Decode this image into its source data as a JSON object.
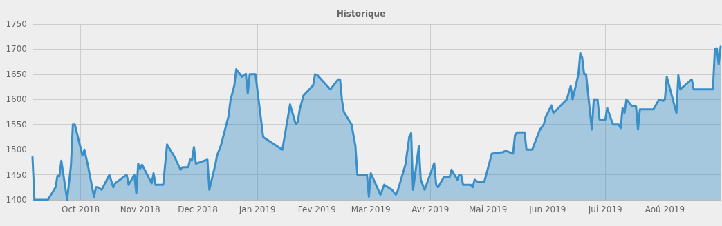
{
  "chart_data": {
    "type": "area",
    "title": "Historique",
    "x": [
      "2018-09-06",
      "2018-09-07",
      "2018-09-14",
      "2018-09-18",
      "2018-09-19",
      "2018-09-20",
      "2018-09-21",
      "2018-09-24",
      "2018-09-26",
      "2018-09-27",
      "2018-09-28",
      "2018-10-02",
      "2018-10-03",
      "2018-10-05",
      "2018-10-08",
      "2018-10-09",
      "2018-10-10",
      "2018-10-12",
      "2018-10-16",
      "2018-10-18",
      "2018-10-19",
      "2018-10-25",
      "2018-10-26",
      "2018-10-29",
      "2018-10-30",
      "2018-10-31",
      "2018-11-01",
      "2018-11-02",
      "2018-11-07",
      "2018-11-08",
      "2018-11-09",
      "2018-11-13",
      "2018-11-15",
      "2018-11-19",
      "2018-11-22",
      "2018-11-23",
      "2018-11-26",
      "2018-11-27",
      "2018-11-28",
      "2018-11-29",
      "2018-11-30",
      "2018-12-03",
      "2018-12-06",
      "2018-12-07",
      "2018-12-10",
      "2018-12-11",
      "2018-12-13",
      "2018-12-17",
      "2018-12-18",
      "2018-12-20",
      "2018-12-21",
      "2018-12-24",
      "2018-12-26",
      "2018-12-27",
      "2018-12-28",
      "2018-12-31",
      "2019-01-04",
      "2019-01-14",
      "2019-01-18",
      "2019-01-21",
      "2019-01-22",
      "2019-01-23",
      "2019-01-25",
      "2019-01-30",
      "2019-01-31",
      "2019-02-01",
      "2019-02-08",
      "2019-02-12",
      "2019-02-13",
      "2019-02-14",
      "2019-02-15",
      "2019-02-19",
      "2019-02-20",
      "2019-02-21",
      "2019-02-22",
      "2019-02-27",
      "2019-02-28",
      "2019-03-01",
      "2019-03-06",
      "2019-03-08",
      "2019-03-12",
      "2019-03-14",
      "2019-03-15",
      "2019-03-19",
      "2019-03-21",
      "2019-03-22",
      "2019-03-23",
      "2019-03-26",
      "2019-03-27",
      "2019-03-29",
      "2019-04-03",
      "2019-04-04",
      "2019-04-05",
      "2019-04-08",
      "2019-04-11",
      "2019-04-12",
      "2019-04-15",
      "2019-04-16",
      "2019-04-17",
      "2019-04-18",
      "2019-04-22",
      "2019-04-23",
      "2019-04-24",
      "2019-04-26",
      "2019-04-29",
      "2019-05-03",
      "2019-05-09",
      "2019-05-10",
      "2019-05-14",
      "2019-05-15",
      "2019-05-16",
      "2019-05-20",
      "2019-05-21",
      "2019-05-24",
      "2019-05-28",
      "2019-05-30",
      "2019-05-31",
      "2019-06-03",
      "2019-06-04",
      "2019-06-11",
      "2019-06-13",
      "2019-06-14",
      "2019-06-17",
      "2019-06-18",
      "2019-06-19",
      "2019-06-20",
      "2019-06-21",
      "2019-06-24",
      "2019-06-25",
      "2019-06-27",
      "2019-06-28",
      "2019-07-01",
      "2019-07-02",
      "2019-07-05",
      "2019-07-08",
      "2019-07-09",
      "2019-07-10",
      "2019-07-11",
      "2019-07-12",
      "2019-07-15",
      "2019-07-17",
      "2019-07-18",
      "2019-07-19",
      "2019-07-26",
      "2019-07-29",
      "2019-07-31",
      "2019-08-01",
      "2019-08-02",
      "2019-08-07",
      "2019-08-08",
      "2019-08-09",
      "2019-08-15",
      "2019-08-16",
      "2019-08-26",
      "2019-08-27",
      "2019-08-28",
      "2019-08-29",
      "2019-08-30"
    ],
    "series": [
      {
        "color": "#3a8fc9",
        "values": [
          1485,
          1400,
          1400,
          1425,
          1448,
          1447,
          1478,
          1400,
          1468,
          1550,
          1550,
          1488,
          1500,
          1465,
          1406,
          1425,
          1425,
          1420,
          1450,
          1425,
          1433,
          1450,
          1430,
          1450,
          1413,
          1472,
          1462,
          1470,
          1433,
          1453,
          1430,
          1430,
          1510,
          1485,
          1460,
          1465,
          1465,
          1480,
          1480,
          1505,
          1472,
          1476,
          1480,
          1420,
          1468,
          1488,
          1508,
          1567,
          1598,
          1628,
          1660,
          1645,
          1651,
          1612,
          1650,
          1650,
          1525,
          1500,
          1590,
          1550,
          1555,
          1580,
          1608,
          1628,
          1650,
          1649,
          1620,
          1640,
          1640,
          1598,
          1575,
          1550,
          1528,
          1507,
          1450,
          1450,
          1406,
          1453,
          1410,
          1430,
          1420,
          1410,
          1418,
          1470,
          1525,
          1533,
          1420,
          1507,
          1440,
          1420,
          1473,
          1430,
          1425,
          1445,
          1445,
          1460,
          1440,
          1450,
          1450,
          1430,
          1430,
          1425,
          1440,
          1435,
          1435,
          1492,
          1495,
          1498,
          1492,
          1528,
          1534,
          1534,
          1500,
          1500,
          1540,
          1550,
          1565,
          1588,
          1573,
          1600,
          1627,
          1600,
          1650,
          1692,
          1683,
          1650,
          1650,
          1540,
          1600,
          1600,
          1560,
          1560,
          1583,
          1550,
          1550,
          1543,
          1583,
          1573,
          1600,
          1586,
          1586,
          1540,
          1580,
          1580,
          1600,
          1597,
          1600,
          1645,
          1573,
          1648,
          1620,
          1640,
          1620,
          1620,
          1700,
          1702,
          1670,
          1705
        ]
      }
    ],
    "xlim": [
      "2018-09-06",
      "2019-08-30"
    ],
    "xticks": [
      {
        "value": "2018-10-01",
        "label": "Oct 2018"
      },
      {
        "value": "2018-11-01",
        "label": "Nov 2018"
      },
      {
        "value": "2018-12-01",
        "label": "Dec 2018"
      },
      {
        "value": "2019-01-01",
        "label": "Jan 2019"
      },
      {
        "value": "2019-02-01",
        "label": "Fev 2019"
      },
      {
        "value": "2019-03-01",
        "label": "Mar 2019"
      },
      {
        "value": "2019-04-01",
        "label": "Avr 2019"
      },
      {
        "value": "2019-05-01",
        "label": "Mai 2019"
      },
      {
        "value": "2019-06-01",
        "label": "Jun 2019"
      },
      {
        "value": "2019-07-01",
        "label": "Jui 2019"
      },
      {
        "value": "2019-08-01",
        "label": "Aoû 2019"
      }
    ],
    "ylim": [
      1400,
      1750
    ],
    "yticks": [
      1400,
      1450,
      1500,
      1550,
      1600,
      1650,
      1700,
      1750
    ],
    "grid": true,
    "marker": "none",
    "line_style": "solid"
  }
}
